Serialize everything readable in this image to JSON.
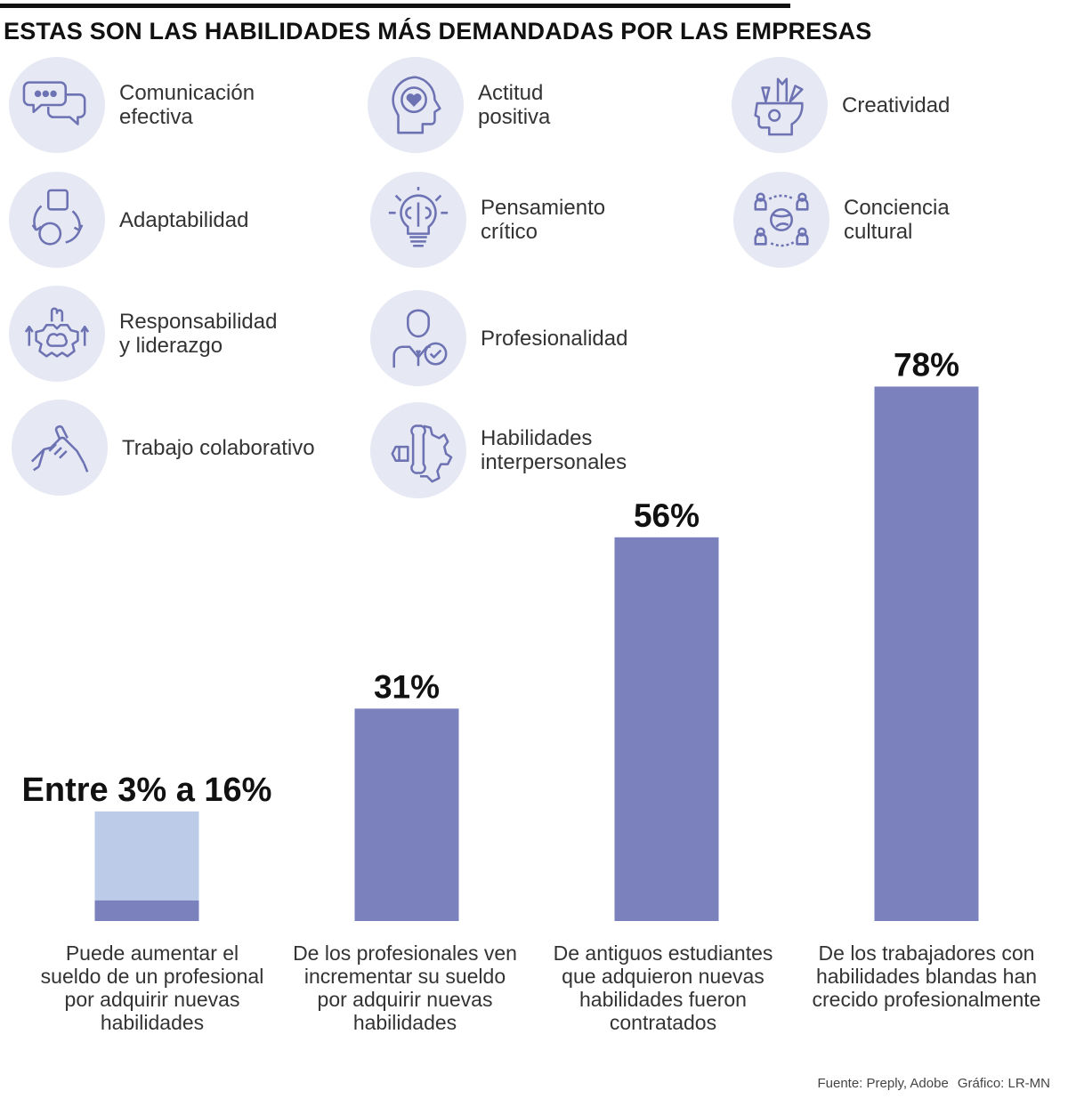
{
  "title": "ESTAS SON LAS HABILIDADES MÁS DEMANDADAS POR LAS EMPRESAS",
  "colors": {
    "bar": "#7b81bd",
    "bar_light": "#bccbe7",
    "circle": "#e6e8f3",
    "icon": "#6d72b3"
  },
  "skills": [
    {
      "label": "Comunicación\nefectiva",
      "icon": "chat-bubbles-icon"
    },
    {
      "label": "Actitud\npositiva",
      "icon": "head-heart-gear-icon"
    },
    {
      "label": "Creatividad",
      "icon": "head-creative-tools-icon"
    },
    {
      "label": "Adaptabilidad",
      "icon": "cycle-shapes-icon"
    },
    {
      "label": "Pensamiento\ncrítico",
      "icon": "lightbulb-brain-icon"
    },
    {
      "label": "Conciencia\ncultural",
      "icon": "globe-people-icon"
    },
    {
      "label": "Responsabilidad\ny liderazgo",
      "icon": "gear-brain-fist-icon"
    },
    {
      "label": "Profesionalidad",
      "icon": "businessman-check-icon"
    },
    {
      "label": "Trabajo colaborativo",
      "icon": "handshake-icon"
    },
    {
      "label": "Habilidades\ninterpersonales",
      "icon": "gear-wrench-icon"
    }
  ],
  "chart_data": {
    "type": "bar",
    "categories": [
      "Puede aumentar el sueldo de un profesional por adquirir nuevas habilidades",
      "De los profesionales ven incrementar su sueldo por adquirir nuevas habilidades",
      "De antiguos estudiantes que adquieron nuevas habilidades fueron contratados",
      "De los trabajadores con habilidades blandas han crecido profesionalmente"
    ],
    "value_labels": [
      "Entre 3% a 16%",
      "31%",
      "56%",
      "78%"
    ],
    "values": [
      16,
      31,
      56,
      78
    ],
    "range_low": [
      3,
      null,
      null,
      null
    ],
    "ylim": [
      0,
      100
    ],
    "grid": false
  },
  "descriptions": [
    "Puede aumentar el\nsueldo de un profesional\npor adquirir nuevas\nhabilidades",
    "De los profesionales ven\nincrementar su sueldo\npor adquirir nuevas\nhabilidades",
    "De antiguos estudiantes\nque adquieron nuevas\nhabilidades fueron\ncontratados",
    "De los trabajadores con\nhabilidades blandas han\ncrecido profesionalmente"
  ],
  "footer": {
    "source": "Fuente: Preply, Adobe",
    "credit": "Gráfico: LR-MN"
  }
}
